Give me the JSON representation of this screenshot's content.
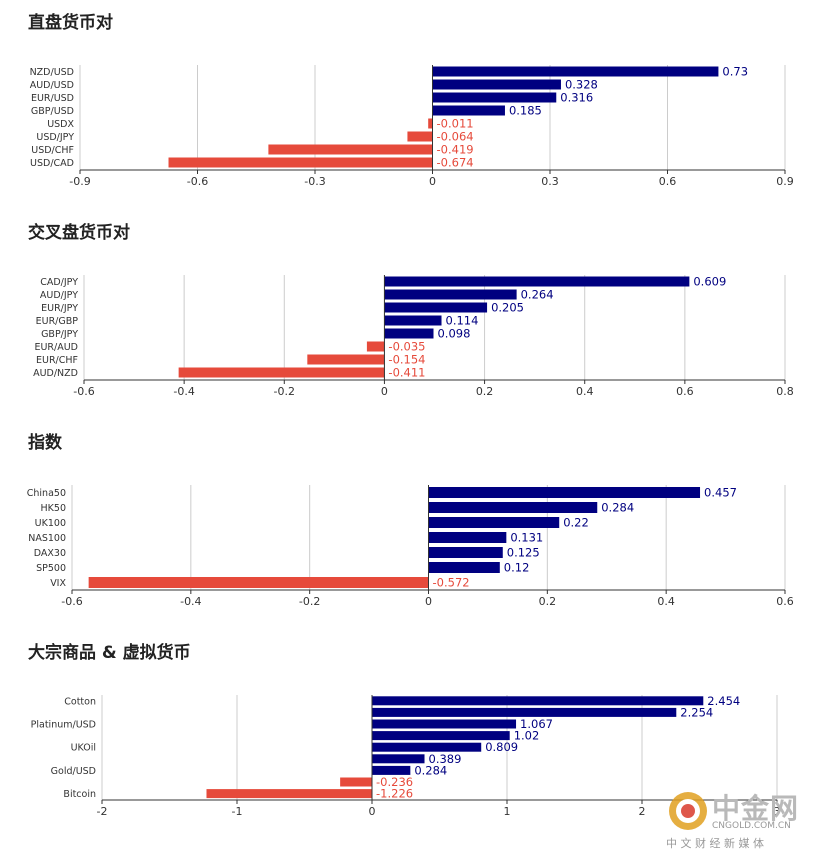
{
  "colors": {
    "positive": "#000080",
    "negative": "#e64a3b",
    "grid": "#cccccc",
    "axis": "#333333"
  },
  "watermark": {
    "brand": "中金网",
    "site": "CNGOLD.COM.CN",
    "tagline": "中 文 财 经 新 媒 体"
  },
  "chart_data": [
    {
      "type": "bar",
      "orientation": "horizontal",
      "title": "直盘货币对",
      "xlim": [
        -0.9,
        0.9
      ],
      "ticks": [
        "-0.9",
        "-0.6",
        "-0.3",
        "0",
        "0.3",
        "0.6",
        "0.9"
      ],
      "categories": [
        "NZD/USD",
        "AUD/USD",
        "EUR/USD",
        "GBP/USD",
        "USDX",
        "USD/JPY",
        "USD/CHF",
        "USD/CAD"
      ],
      "values": [
        0.73,
        0.328,
        0.316,
        0.185,
        -0.011,
        -0.064,
        -0.419,
        -0.674
      ],
      "value_labels": [
        "0.73",
        "0.328",
        "0.316",
        "0.185",
        "-0.011",
        "-0.064",
        "-0.419",
        "-0.674"
      ],
      "category_label_every": 1
    },
    {
      "type": "bar",
      "orientation": "horizontal",
      "title": "交叉盘货币对",
      "xlim": [
        -0.6,
        0.8
      ],
      "ticks": [
        "-0.6",
        "-0.4",
        "-0.2",
        "0",
        "0.2",
        "0.4",
        "0.6",
        "0.8"
      ],
      "categories": [
        "CAD/JPY",
        "AUD/JPY",
        "EUR/JPY",
        "EUR/GBP",
        "GBP/JPY",
        "EUR/AUD",
        "EUR/CHF",
        "AUD/NZD"
      ],
      "values": [
        0.609,
        0.264,
        0.205,
        0.114,
        0.098,
        -0.035,
        -0.154,
        -0.411
      ],
      "value_labels": [
        "0.609",
        "0.264",
        "0.205",
        "0.114",
        "0.098",
        "-0.035",
        "-0.154",
        "-0.411"
      ],
      "category_label_every": 1
    },
    {
      "type": "bar",
      "orientation": "horizontal",
      "title": "指数",
      "xlim": [
        -0.6,
        0.6
      ],
      "ticks": [
        "-0.6",
        "-0.4",
        "-0.2",
        "0",
        "0.2",
        "0.4",
        "0.6"
      ],
      "categories": [
        "China50",
        "HK50",
        "UK100",
        "NAS100",
        "DAX30",
        "SP500",
        "VIX"
      ],
      "values": [
        0.457,
        0.284,
        0.22,
        0.131,
        0.125,
        0.12,
        -0.572
      ],
      "value_labels": [
        "0.457",
        "0.284",
        "0.22",
        "0.131",
        "0.125",
        "0.12",
        "-0.572"
      ],
      "category_label_every": 1
    },
    {
      "type": "bar",
      "orientation": "horizontal",
      "title": "大宗商品 & 虚拟货币",
      "xlim": [
        -2,
        3
      ],
      "ticks": [
        "-2",
        "-1",
        "0",
        "1",
        "2",
        "3"
      ],
      "categories": [
        "Cotton",
        "",
        "Platinum/USD",
        "",
        "UKOil",
        "",
        "Gold/USD",
        "",
        "Bitcoin"
      ],
      "values": [
        2.454,
        2.254,
        1.067,
        1.02,
        0.809,
        0.389,
        0.284,
        -0.236,
        -1.226
      ],
      "value_labels": [
        "2.454",
        "2.254",
        "1.067",
        "1.02",
        "0.809",
        "0.389",
        "0.284",
        "-0.236",
        "-1.226"
      ],
      "category_label_every": 2
    }
  ]
}
